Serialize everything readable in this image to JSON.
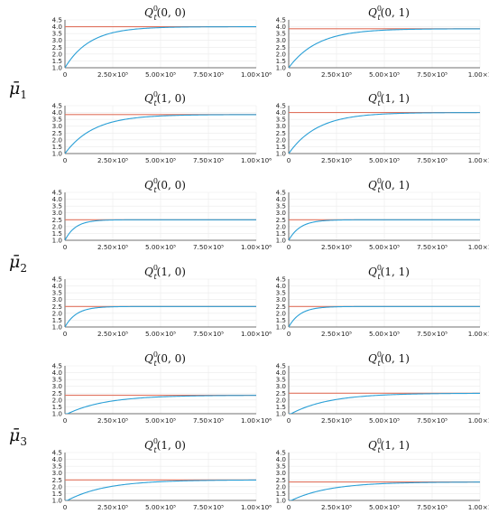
{
  "row_labels": [
    {
      "base": "μ̄",
      "index": "1"
    },
    {
      "base": "μ̄",
      "index": "2"
    },
    {
      "base": "μ̄",
      "index": "3"
    }
  ],
  "colors": {
    "curve": "#2a9fd6",
    "target": "#e0735f",
    "grid": "#ebebeb",
    "axis": "#444444"
  },
  "chart_data": [
    {
      "type": "line",
      "title": {
        "q": "Q",
        "sup": "0",
        "sub": "t",
        "args": "(0, 0)"
      },
      "xlim": [
        0,
        1000000
      ],
      "ylim": [
        1.0,
        4.5
      ],
      "target": 4.0,
      "y0": 1.0,
      "tau": 130000,
      "xtick_labels": [
        "0",
        "2.50×10⁵",
        "5.00×10⁵",
        "7.50×10⁵",
        "1.00×10⁶"
      ],
      "ytick_labels": [
        "1.0",
        "1.5",
        "2.0",
        "2.5",
        "3.0",
        "3.5",
        "4.0",
        "4.5"
      ]
    },
    {
      "type": "line",
      "title": {
        "q": "Q",
        "sup": "0",
        "sub": "t",
        "args": "(0, 1)"
      },
      "xlim": [
        0,
        1000000
      ],
      "ylim": [
        1.0,
        4.5
      ],
      "target": 3.85,
      "y0": 1.0,
      "tau": 150000,
      "xtick_labels": [
        "0",
        "2.50×10⁵",
        "5.00×10⁵",
        "7.50×10⁵",
        "1.00×1"
      ],
      "ytick_labels": [
        "1.0",
        "1.5",
        "2.0",
        "2.5",
        "3.0",
        "3.5",
        "4.0",
        "4.5"
      ]
    },
    {
      "type": "line",
      "title": {
        "q": "Q",
        "sup": "0",
        "sub": "t",
        "args": "(1, 0)"
      },
      "xlim": [
        0,
        1000000
      ],
      "ylim": [
        1.0,
        4.5
      ],
      "target": 3.85,
      "y0": 1.0,
      "tau": 150000,
      "xtick_labels": [
        "0",
        "2.50×10⁵",
        "5.00×10⁵",
        "7.50×10⁵",
        "1.00×10⁶"
      ],
      "ytick_labels": [
        "1.0",
        "1.5",
        "2.0",
        "2.5",
        "3.0",
        "3.5",
        "4.0",
        "4.5"
      ]
    },
    {
      "type": "line",
      "title": {
        "q": "Q",
        "sup": "0",
        "sub": "t",
        "args": "(1, 1)"
      },
      "xlim": [
        0,
        1000000
      ],
      "ylim": [
        1.0,
        4.5
      ],
      "target": 4.0,
      "y0": 1.0,
      "tau": 150000,
      "xtick_labels": [
        "0",
        "2.50×10⁵",
        "5.00×10⁵",
        "7.50×10⁵",
        "1.00×1"
      ],
      "ytick_labels": [
        "1.0",
        "1.5",
        "2.0",
        "2.5",
        "3.0",
        "3.5",
        "4.0",
        "4.5"
      ]
    },
    {
      "type": "line",
      "title": {
        "q": "Q",
        "sup": "0",
        "sub": "t",
        "args": "(0, 0)"
      },
      "xlim": [
        0,
        1000000
      ],
      "ylim": [
        1.0,
        4.5
      ],
      "target": 2.5,
      "y0": 1.0,
      "tau": 55000,
      "xtick_labels": [
        "0",
        "2.50×10⁵",
        "5.00×10⁵",
        "7.50×10⁵",
        "1.00×10⁶"
      ],
      "ytick_labels": [
        "1.0",
        "1.5",
        "2.0",
        "2.5",
        "3.0",
        "3.5",
        "4.0",
        "4.5"
      ]
    },
    {
      "type": "line",
      "title": {
        "q": "Q",
        "sup": "0",
        "sub": "t",
        "args": "(0, 1)"
      },
      "xlim": [
        0,
        1000000
      ],
      "ylim": [
        1.0,
        4.5
      ],
      "target": 2.5,
      "y0": 1.0,
      "tau": 60000,
      "xtick_labels": [
        "0",
        "2.50×10⁵",
        "5.00×10⁵",
        "7.50×10⁵",
        "1.00×1"
      ],
      "ytick_labels": [
        "1.0",
        "1.5",
        "2.0",
        "2.5",
        "3.0",
        "3.5",
        "4.0",
        "4.5"
      ]
    },
    {
      "type": "line",
      "title": {
        "q": "Q",
        "sup": "0",
        "sub": "t",
        "args": "(1, 0)"
      },
      "xlim": [
        0,
        1000000
      ],
      "ylim": [
        1.0,
        4.5
      ],
      "target": 2.5,
      "y0": 1.0,
      "tau": 60000,
      "xtick_labels": [
        "0",
        "2.50×10⁵",
        "5.00×10⁵",
        "7.50×10⁵",
        "1.00×10⁶"
      ],
      "ytick_labels": [
        "1.0",
        "1.5",
        "2.0",
        "2.5",
        "3.0",
        "3.5",
        "4.0",
        "4.5"
      ]
    },
    {
      "type": "line",
      "title": {
        "q": "Q",
        "sup": "0",
        "sub": "t",
        "args": "(1, 1)"
      },
      "xlim": [
        0,
        1000000
      ],
      "ylim": [
        1.0,
        4.5
      ],
      "target": 2.5,
      "y0": 1.0,
      "tau": 60000,
      "xtick_labels": [
        "0",
        "2.50×10⁵",
        "5.00×10⁵",
        "7.50×10⁵",
        "1.00×1"
      ],
      "ytick_labels": [
        "1.0",
        "1.5",
        "2.0",
        "2.5",
        "3.0",
        "3.5",
        "4.0",
        "4.5"
      ]
    },
    {
      "type": "line",
      "title": {
        "q": "Q",
        "sup": "0",
        "sub": "t",
        "args": "(0, 0)"
      },
      "xlim": [
        0,
        1000000
      ],
      "ylim": [
        1.0,
        4.5
      ],
      "target": 2.35,
      "y0": 0.9,
      "tau": 200000,
      "xtick_labels": [
        "0",
        "2.50×10⁵",
        "5.00×10⁵",
        "7.50×10⁵",
        "1.00×10⁶"
      ],
      "ytick_labels": [
        "1.0",
        "1.5",
        "2.0",
        "2.5",
        "3.0",
        "3.5",
        "4.0",
        "4.5"
      ]
    },
    {
      "type": "line",
      "title": {
        "q": "Q",
        "sup": "0",
        "sub": "t",
        "args": "(0, 1)"
      },
      "xlim": [
        0,
        1000000
      ],
      "ylim": [
        1.0,
        4.5
      ],
      "target": 2.5,
      "y0": 0.9,
      "tau": 200000,
      "xtick_labels": [
        "0",
        "2.50×10⁵",
        "5.00×10⁵",
        "7.50×10⁵",
        "1.00×1"
      ],
      "ytick_labels": [
        "1.0",
        "1.5",
        "2.0",
        "2.5",
        "3.0",
        "3.5",
        "4.0",
        "4.5"
      ]
    },
    {
      "type": "line",
      "title": {
        "q": "Q",
        "sup": "0",
        "sub": "t",
        "args": "(1, 0)"
      },
      "xlim": [
        0,
        1000000
      ],
      "ylim": [
        1.0,
        4.5
      ],
      "target": 2.5,
      "y0": 0.9,
      "tau": 200000,
      "xtick_labels": [
        "0",
        "2.50×10⁵",
        "5.00×10⁵",
        "7.50×10⁵",
        "1.00×10⁶"
      ],
      "ytick_labels": [
        "1.0",
        "1.5",
        "2.0",
        "2.5",
        "3.0",
        "3.5",
        "4.0",
        "4.5"
      ]
    },
    {
      "type": "line",
      "title": {
        "q": "Q",
        "sup": "0",
        "sub": "t",
        "args": "(1, 1)"
      },
      "xlim": [
        0,
        1000000
      ],
      "ylim": [
        1.0,
        4.5
      ],
      "target": 2.35,
      "y0": 0.9,
      "tau": 200000,
      "xtick_labels": [
        "0",
        "2.50×10⁵",
        "5.00×10⁵",
        "7.50×10⁵",
        "1.00×1"
      ],
      "ytick_labels": [
        "1.0",
        "1.5",
        "2.0",
        "2.5",
        "3.0",
        "3.5",
        "4.0",
        "4.5"
      ]
    }
  ]
}
